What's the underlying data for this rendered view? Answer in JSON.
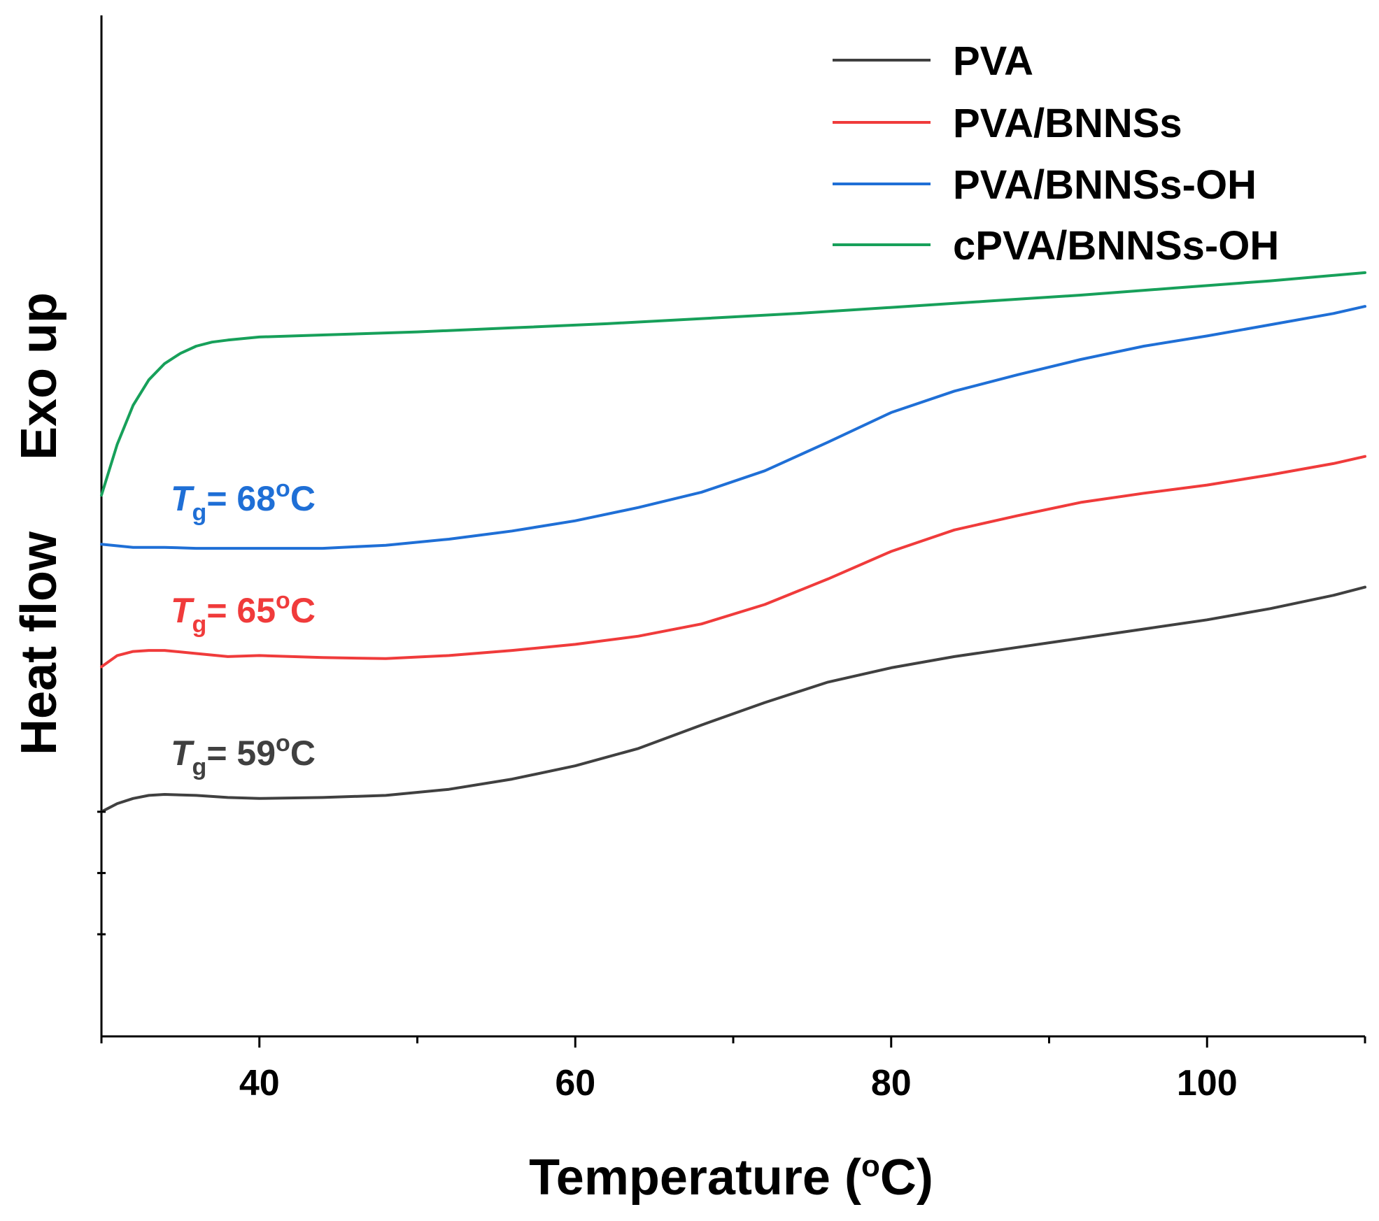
{
  "chart_data": {
    "type": "line",
    "title": "",
    "xlabel": "Temperature (oC)",
    "xlabel_parts": {
      "main": "Temperature (",
      "sup": "o",
      "end": "C)"
    },
    "ylabel": "Heat flow",
    "ylabel_secondary": "Exo up",
    "xlim": [
      30,
      110
    ],
    "ylim": [
      0,
      100
    ],
    "x_ticks": [
      40,
      60,
      80,
      100
    ],
    "x_tick_labels": [
      "40",
      "60",
      "80",
      "100"
    ],
    "x_minor_ticks": [
      30,
      50,
      70,
      90,
      110
    ],
    "y_ticks_unlabeled": [
      10,
      16,
      22
    ],
    "grid": false,
    "legend_position": "top-right",
    "series": [
      {
        "name": "PVA",
        "color": "#404040",
        "x": [
          30,
          31,
          32,
          33,
          34,
          36,
          38,
          40,
          44,
          48,
          52,
          56,
          60,
          64,
          68,
          72,
          76,
          80,
          84,
          88,
          92,
          96,
          100,
          104,
          108,
          110
        ],
        "y": [
          22.0,
          22.8,
          23.3,
          23.6,
          23.7,
          23.6,
          23.4,
          23.3,
          23.4,
          23.6,
          24.2,
          25.2,
          26.5,
          28.2,
          30.5,
          32.7,
          34.7,
          36.1,
          37.2,
          38.1,
          39.0,
          39.9,
          40.8,
          41.9,
          43.2,
          44.0
        ]
      },
      {
        "name": "PVA/BNNSs",
        "color": "#f03b3b",
        "x": [
          30,
          31,
          32,
          33,
          34,
          36,
          38,
          40,
          44,
          48,
          52,
          56,
          60,
          64,
          68,
          72,
          76,
          80,
          84,
          88,
          92,
          96,
          100,
          104,
          108,
          110
        ],
        "y": [
          36.2,
          37.3,
          37.7,
          37.8,
          37.8,
          37.5,
          37.2,
          37.3,
          37.1,
          37.0,
          37.3,
          37.8,
          38.4,
          39.2,
          40.4,
          42.3,
          44.8,
          47.5,
          49.6,
          51.0,
          52.3,
          53.2,
          54.0,
          55.0,
          56.1,
          56.8
        ]
      },
      {
        "name": "PVA/BNNSs-OH",
        "color": "#1f6fd6",
        "x": [
          30,
          32,
          34,
          36,
          40,
          44,
          48,
          52,
          56,
          60,
          64,
          68,
          72,
          76,
          80,
          84,
          88,
          92,
          96,
          100,
          104,
          108,
          110
        ],
        "y": [
          48.2,
          47.9,
          47.9,
          47.8,
          47.8,
          47.8,
          48.1,
          48.7,
          49.5,
          50.5,
          51.8,
          53.3,
          55.4,
          58.2,
          61.1,
          63.2,
          64.8,
          66.3,
          67.6,
          68.6,
          69.7,
          70.8,
          71.5
        ]
      },
      {
        "name": "cPVA/BNNSs-OH",
        "color": "#17a05a",
        "x": [
          30,
          31,
          32,
          33,
          34,
          35,
          36,
          37,
          38,
          40,
          44,
          50,
          56,
          62,
          68,
          74,
          80,
          86,
          92,
          98,
          104,
          110
        ],
        "y": [
          53.0,
          58.0,
          61.8,
          64.3,
          65.9,
          66.9,
          67.6,
          68.0,
          68.2,
          68.5,
          68.7,
          69.0,
          69.4,
          69.8,
          70.3,
          70.8,
          71.4,
          72.0,
          72.6,
          73.3,
          74.0,
          74.8
        ]
      }
    ],
    "annotations": [
      {
        "series": "PVA/BNNSs-OH",
        "symbol": "T",
        "subscript": "g",
        "value_text": "= 68oC",
        "value_main": "= 68",
        "value_sup": "o",
        "value_end": "C",
        "color": "#1f6fd6"
      },
      {
        "series": "PVA/BNNSs",
        "symbol": "T",
        "subscript": "g",
        "value_text": "= 65oC",
        "value_main": "= 65",
        "value_sup": "o",
        "value_end": "C",
        "color": "#f03b3b"
      },
      {
        "series": "PVA",
        "symbol": "T",
        "subscript": "g",
        "value_text": "= 59oC",
        "value_main": "= 59",
        "value_sup": "o",
        "value_end": "C",
        "color": "#404040"
      }
    ]
  }
}
